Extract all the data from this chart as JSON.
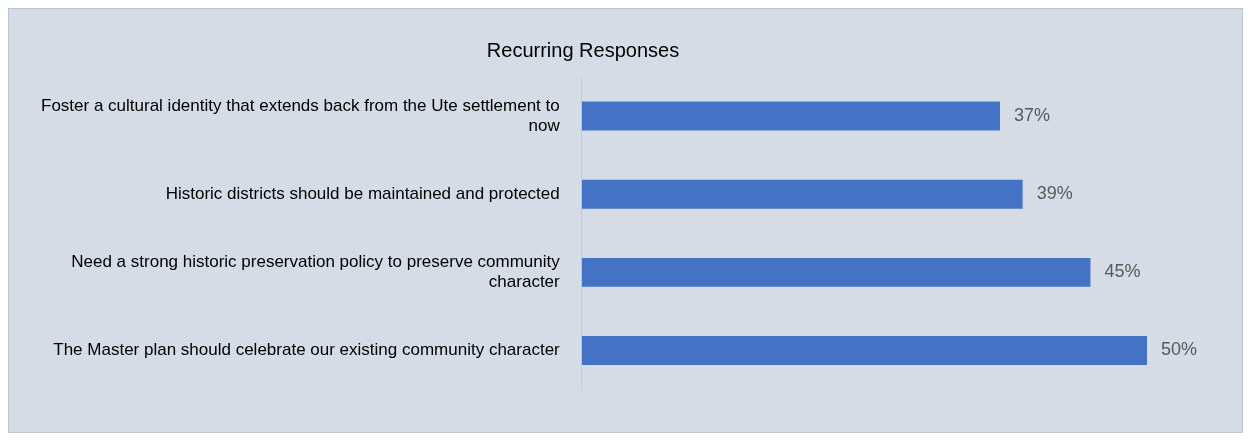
{
  "chart_data": {
    "type": "bar",
    "orientation": "horizontal",
    "title": "Recurring Responses",
    "categories": [
      "Foster a cultural identity that extends back from the Ute settlement to now",
      "Historic districts should be maintained and protected",
      "Need a strong historic preservation policy to preserve community character",
      "The Master plan should celebrate our existing community character"
    ],
    "values": [
      37,
      39,
      45,
      50
    ],
    "color": "#4472c4",
    "value_labels": [
      "37%",
      "39%",
      "45%",
      "50%"
    ],
    "legend": false
  }
}
